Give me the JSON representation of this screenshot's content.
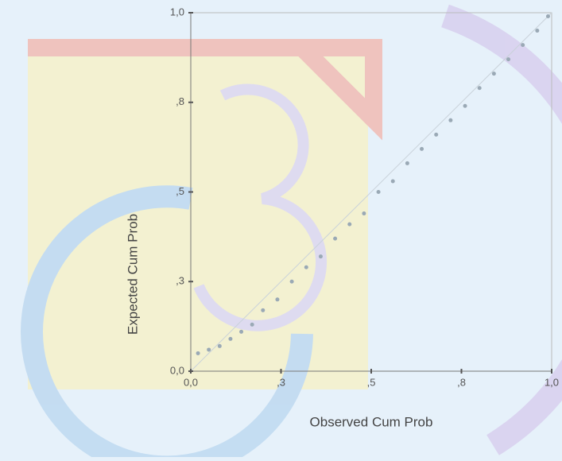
{
  "chart_data": {
    "type": "scatter",
    "x_label": "Observed Cum Prob",
    "y_label": "Expected Cum Prob",
    "x": [
      0.02,
      0.05,
      0.08,
      0.11,
      0.14,
      0.17,
      0.2,
      0.24,
      0.28,
      0.32,
      0.36,
      0.4,
      0.44,
      0.48,
      0.52,
      0.56,
      0.6,
      0.64,
      0.68,
      0.72,
      0.76,
      0.8,
      0.84,
      0.88,
      0.92,
      0.96,
      0.99
    ],
    "values": [
      0.05,
      0.06,
      0.07,
      0.09,
      0.11,
      0.13,
      0.17,
      0.2,
      0.25,
      0.29,
      0.32,
      0.37,
      0.41,
      0.44,
      0.5,
      0.53,
      0.58,
      0.62,
      0.66,
      0.7,
      0.74,
      0.79,
      0.83,
      0.87,
      0.91,
      0.95,
      0.99
    ],
    "color": "#9aa9b5",
    "xlim": [
      0,
      1
    ],
    "ylim": [
      0,
      1
    ],
    "xticks": [
      {
        "value": 0,
        "label": "0,0"
      },
      {
        "value": 0.25,
        "label": ",3"
      },
      {
        "value": 0.5,
        "label": ",5"
      },
      {
        "value": 0.75,
        "label": ",8"
      },
      {
        "value": 1,
        "label": "1,0"
      }
    ],
    "yticks": [
      {
        "value": 0,
        "label": "0,0"
      },
      {
        "value": 0.25,
        "label": ",3"
      },
      {
        "value": 0.5,
        "label": ",5"
      },
      {
        "value": 0.75,
        "label": ",8"
      },
      {
        "value": 1,
        "label": "1,0"
      }
    ]
  }
}
